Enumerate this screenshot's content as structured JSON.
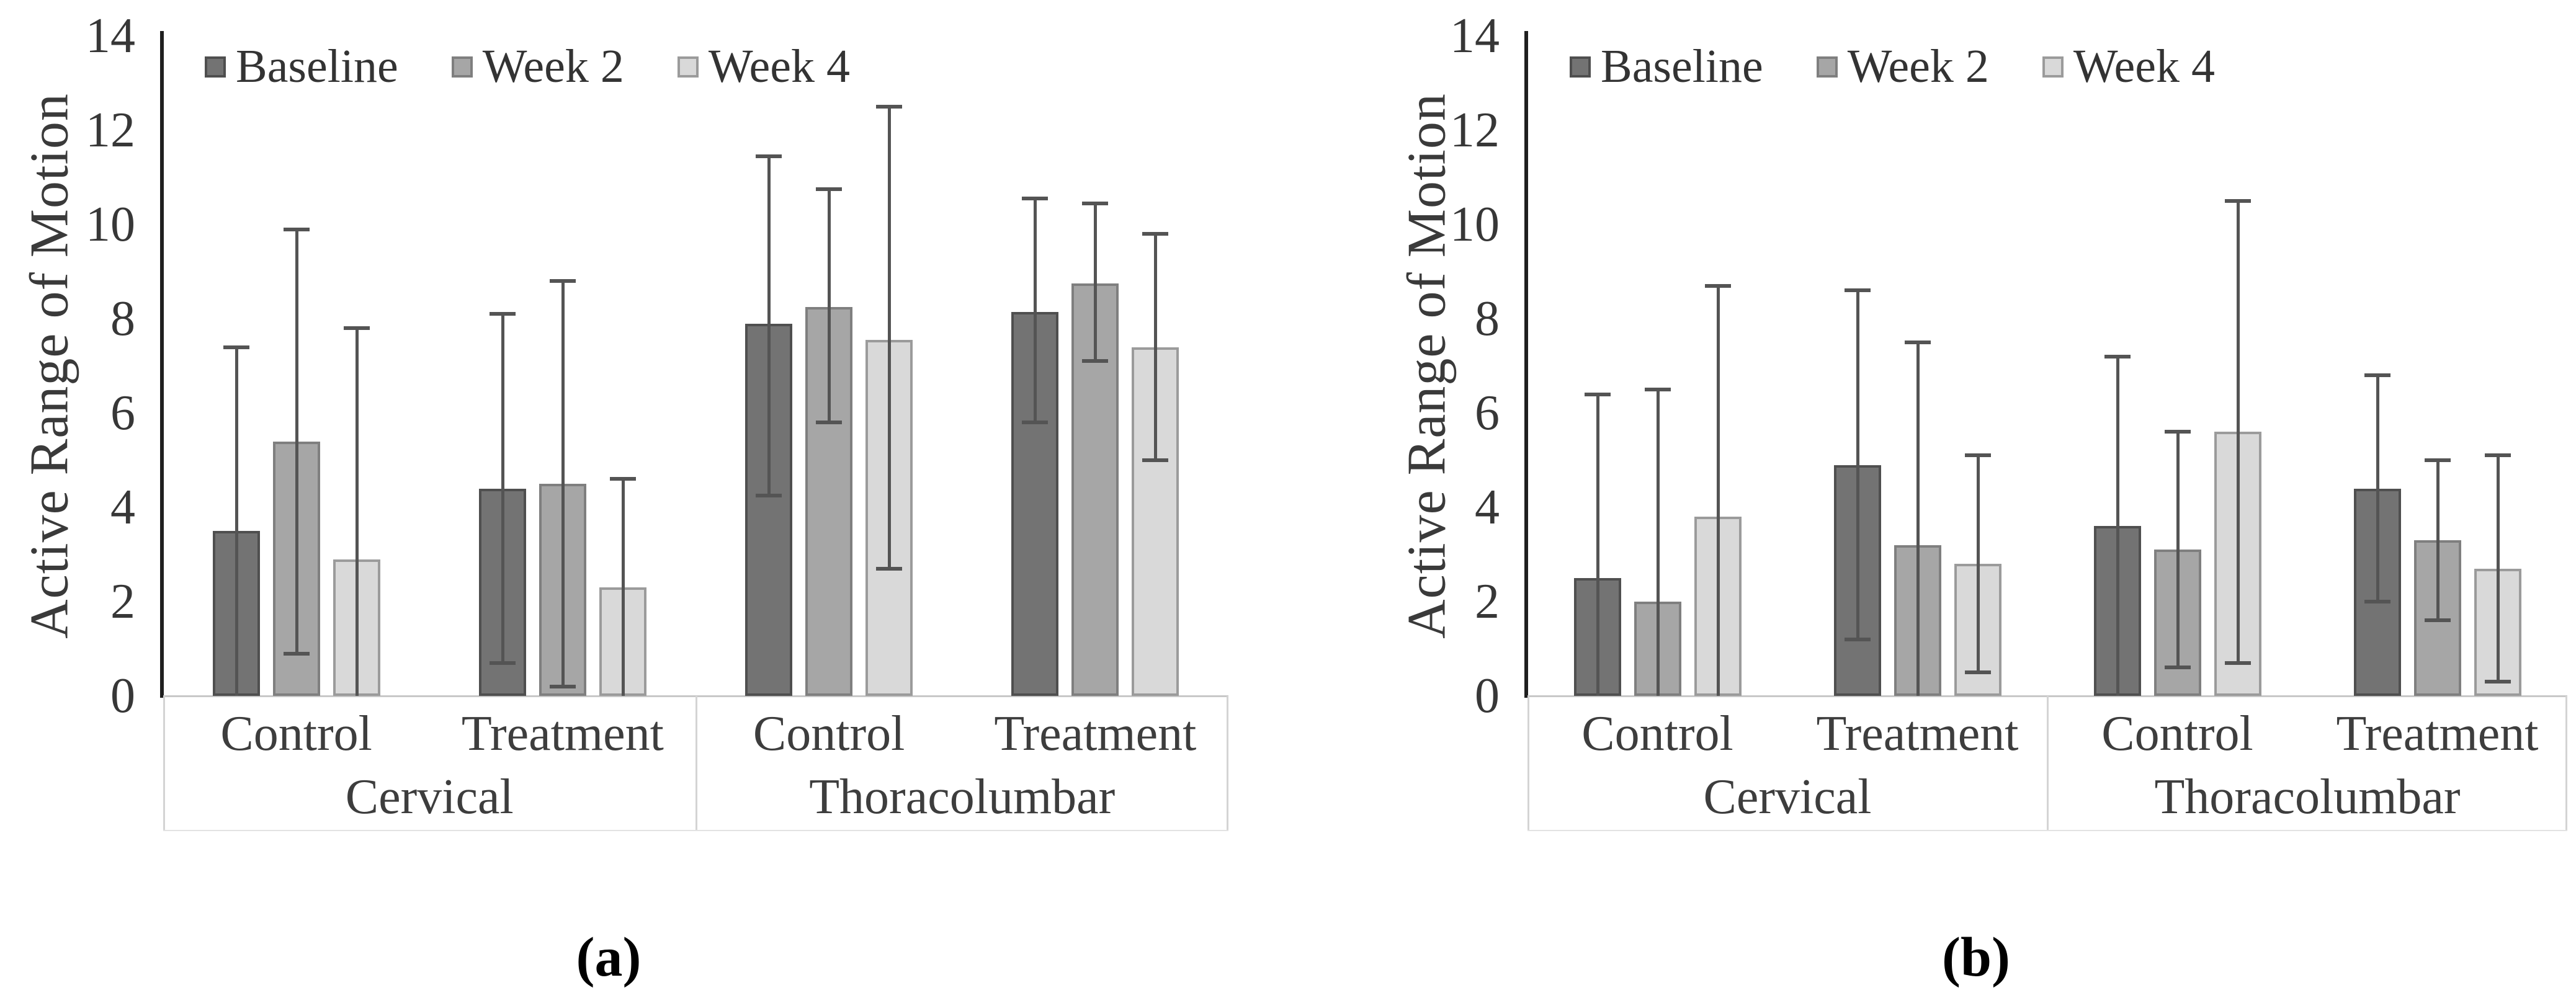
{
  "figure": {
    "captions": [
      "(a)",
      "(b)"
    ],
    "colors": {
      "baseline_fill": "#737373",
      "baseline_border": "#4f4f4f",
      "week2_fill": "#a6a6a6",
      "week2_border": "#7f7f7f",
      "week4_fill": "#d9d9d9",
      "week4_border": "#9b9b9b",
      "error_bar": "#545454",
      "y_axis_line": "#1f1f1f",
      "baseline_axis_line": "#c8c8c8",
      "table_border": "#d4d4d4",
      "text": "#3d3d3d"
    }
  },
  "chart_data": [
    {
      "type": "bar",
      "title": "",
      "xlabel": "",
      "ylabel": "Active Range of Motion",
      "ylim": [
        0,
        14
      ],
      "yticks": [
        0,
        2,
        4,
        6,
        8,
        10,
        12,
        14
      ],
      "grid": false,
      "legend_position": "top-left",
      "group_labels": [
        "Cervical",
        "Thoracolumbar"
      ],
      "categories": [
        "Control",
        "Treatment",
        "Control",
        "Treatment"
      ],
      "series": [
        {
          "name": "Baseline",
          "values": [
            3.5,
            4.4,
            7.9,
            8.15
          ],
          "err_high": [
            7.4,
            8.1,
            11.45,
            10.55
          ],
          "err_low": [
            null,
            0.7,
            4.25,
            5.8
          ]
        },
        {
          "name": "Week 2",
          "values": [
            5.4,
            4.5,
            8.25,
            8.75
          ],
          "err_high": [
            9.9,
            8.8,
            10.75,
            10.45
          ],
          "err_low": [
            0.9,
            0.2,
            5.8,
            7.1
          ]
        },
        {
          "name": "Week 4",
          "values": [
            2.9,
            2.3,
            7.55,
            7.4
          ],
          "err_high": [
            7.8,
            4.6,
            12.5,
            9.8
          ],
          "err_low": [
            null,
            null,
            2.7,
            5.0
          ]
        }
      ]
    },
    {
      "type": "bar",
      "title": "",
      "xlabel": "",
      "ylabel": "Active Range of Motion",
      "ylim": [
        0,
        14
      ],
      "yticks": [
        0,
        2,
        4,
        6,
        8,
        10,
        12,
        14
      ],
      "grid": false,
      "legend_position": "top-left",
      "group_labels": [
        "Cervical",
        "Thoracolumbar"
      ],
      "categories": [
        "Control",
        "Treatment",
        "Control",
        "Treatment"
      ],
      "series": [
        {
          "name": "Baseline",
          "values": [
            2.5,
            4.9,
            3.6,
            4.4
          ],
          "err_high": [
            6.4,
            8.6,
            7.2,
            6.8
          ],
          "err_low": [
            null,
            1.2,
            null,
            2.0
          ]
        },
        {
          "name": "Week 2",
          "values": [
            2.0,
            3.2,
            3.1,
            3.3
          ],
          "err_high": [
            6.5,
            7.5,
            5.6,
            5.0
          ],
          "err_low": [
            null,
            null,
            0.6,
            1.6
          ]
        },
        {
          "name": "Week 4",
          "values": [
            3.8,
            2.8,
            5.6,
            2.7
          ],
          "err_high": [
            8.7,
            5.1,
            10.5,
            5.1
          ],
          "err_low": [
            null,
            0.5,
            0.7,
            0.3
          ]
        }
      ]
    }
  ]
}
